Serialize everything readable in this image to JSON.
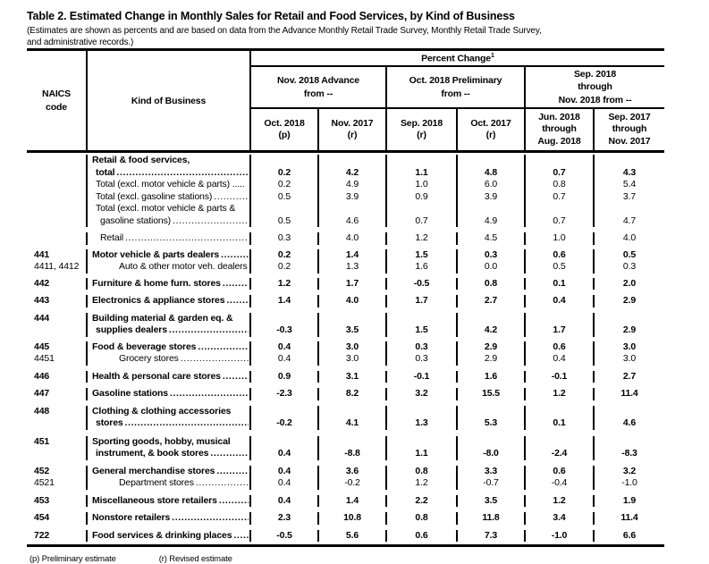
{
  "title": "Table 2.  Estimated Change in Monthly Sales for Retail and Food Services, by Kind of Business",
  "subtitle_line1": "(Estimates are shown as percents and are based on data from the Advance Monthly Retail Trade Survey,  Monthly Retail Trade Survey,",
  "subtitle_line2": " and administrative records.)",
  "header": {
    "naics_line1": "NAICS",
    "naics_line2": "code",
    "kind_of_business": "Kind of Business",
    "percent_change": "Percent Change",
    "percent_change_sup": "1",
    "groups": [
      {
        "lines": [
          "Nov. 2018 Advance",
          "from --"
        ]
      },
      {
        "lines": [
          "Oct. 2018 Preliminary",
          "from --"
        ]
      },
      {
        "lines": [
          "Sep. 2018",
          "through",
          "Nov. 2018 from --"
        ]
      }
    ],
    "columns": [
      {
        "lines": [
          "Oct. 2018",
          "(p)"
        ]
      },
      {
        "lines": [
          "Nov. 2017",
          "(r)"
        ]
      },
      {
        "lines": [
          "Sep. 2018",
          "(r)"
        ]
      },
      {
        "lines": [
          "Oct. 2017",
          "(r)"
        ]
      },
      {
        "lines": [
          "Jun. 2018",
          "through",
          "Aug. 2018"
        ]
      },
      {
        "lines": [
          "Sep. 2017",
          "through",
          "Nov. 2017"
        ]
      }
    ]
  },
  "rows": [
    {
      "naics": "",
      "naics_bold": false,
      "bold": true,
      "gap_above": 2,
      "label_lines": [
        {
          "text": "Retail & food services,",
          "indent": 5,
          "dots": false
        },
        {
          "text": "total",
          "indent": 9,
          "dots": true
        }
      ],
      "values": [
        "0.2",
        "4.2",
        "1.1",
        "4.8",
        "0.7",
        "4.3"
      ]
    },
    {
      "naics": "",
      "naics_bold": false,
      "bold": false,
      "gap_above": 0,
      "label_lines": [
        {
          "text": "Total (excl. motor vehicle & parts) .....",
          "indent": 9,
          "dots": false
        }
      ],
      "values": [
        "0.2",
        "4.9",
        "1.0",
        "6.0",
        "0.8",
        "5.4"
      ]
    },
    {
      "naics": "",
      "naics_bold": false,
      "bold": false,
      "gap_above": 0,
      "label_lines": [
        {
          "text": "Total (excl. gasoline stations)",
          "indent": 9,
          "dots": true
        }
      ],
      "values": [
        "0.5",
        "3.9",
        "0.9",
        "3.9",
        "0.7",
        "3.7"
      ]
    },
    {
      "naics": "",
      "naics_bold": false,
      "bold": false,
      "gap_above": 0,
      "label_lines": [
        {
          "text": "Total (excl. motor vehicle & parts &",
          "indent": 9,
          "dots": false
        },
        {
          "text": "gasoline stations)",
          "indent": 14,
          "dots": true
        }
      ],
      "values": [
        "0.5",
        "4.6",
        "0.7",
        "4.9",
        "0.7",
        "4.7"
      ]
    },
    {
      "naics": "",
      "naics_bold": false,
      "bold": false,
      "gap_above": 6,
      "label_lines": [
        {
          "text": "Retail",
          "indent": 14,
          "dots": true
        }
      ],
      "values": [
        "0.3",
        "4.0",
        "1.2",
        "4.5",
        "1.0",
        "4.0"
      ]
    },
    {
      "naics": "441",
      "naics_bold": true,
      "bold": true,
      "gap_above": 5,
      "label_lines": [
        {
          "text": "Motor vehicle & parts dealers",
          "indent": 5,
          "dots": true
        }
      ],
      "values": [
        "0.2",
        "1.4",
        "1.5",
        "0.3",
        "0.6",
        "0.5"
      ]
    },
    {
      "naics": "4411, 4412",
      "naics_bold": false,
      "bold": false,
      "gap_above": 0,
      "label_lines": [
        {
          "text": "Auto & other motor veh. dealers ...",
          "indent": 35,
          "dots": false
        }
      ],
      "values": [
        "0.2",
        "1.3",
        "1.6",
        "0.0",
        "0.5",
        "0.3"
      ]
    },
    {
      "naics": "442",
      "naics_bold": true,
      "bold": true,
      "gap_above": 5,
      "label_lines": [
        {
          "text": "Furniture & home furn. stores",
          "indent": 5,
          "dots": true
        }
      ],
      "values": [
        "1.2",
        "1.7",
        "-0.5",
        "0.8",
        "0.1",
        "2.0"
      ]
    },
    {
      "naics": "443",
      "naics_bold": true,
      "bold": true,
      "gap_above": 6,
      "label_lines": [
        {
          "text": "Electronics & appliance stores",
          "indent": 5,
          "dots": true
        }
      ],
      "values": [
        "1.4",
        "4.0",
        "1.7",
        "2.7",
        "0.4",
        "2.9"
      ]
    },
    {
      "naics": "444",
      "naics_bold": true,
      "bold": true,
      "gap_above": 6,
      "label_lines": [
        {
          "text": "Building material & garden eq. &",
          "indent": 5,
          "dots": false
        },
        {
          "text": "supplies dealers",
          "indent": 9,
          "dots": true
        }
      ],
      "values": [
        "-0.3",
        "3.5",
        "1.5",
        "4.2",
        "1.7",
        "2.9"
      ]
    },
    {
      "naics": "445",
      "naics_bold": true,
      "bold": true,
      "gap_above": 5,
      "label_lines": [
        {
          "text": "Food & beverage stores",
          "indent": 5,
          "dots": true
        }
      ],
      "values": [
        "0.4",
        "3.0",
        "0.3",
        "2.9",
        "0.6",
        "3.0"
      ]
    },
    {
      "naics": "4451",
      "naics_bold": false,
      "bold": false,
      "gap_above": 0,
      "label_lines": [
        {
          "text": "Grocery stores",
          "indent": 35,
          "dots": true
        }
      ],
      "values": [
        "0.4",
        "3.0",
        "0.3",
        "2.9",
        "0.4",
        "3.0"
      ]
    },
    {
      "naics": "446",
      "naics_bold": true,
      "bold": true,
      "gap_above": 6,
      "label_lines": [
        {
          "text": "Health & personal care stores",
          "indent": 5,
          "dots": true
        }
      ],
      "values": [
        "0.9",
        "3.1",
        "-0.1",
        "1.6",
        "-0.1",
        "2.7"
      ]
    },
    {
      "naics": "447",
      "naics_bold": true,
      "bold": true,
      "gap_above": 6,
      "label_lines": [
        {
          "text": "Gasoline stations",
          "indent": 5,
          "dots": true
        }
      ],
      "values": [
        "-2.3",
        "8.2",
        "3.2",
        "15.5",
        "1.2",
        "11.4"
      ]
    },
    {
      "naics": "448",
      "naics_bold": true,
      "bold": true,
      "gap_above": 6,
      "label_lines": [
        {
          "text": "Clothing & clothing accessories",
          "indent": 5,
          "dots": false
        },
        {
          "text": "stores",
          "indent": 9,
          "dots": true
        }
      ],
      "values": [
        "-0.2",
        "4.1",
        "1.3",
        "5.3",
        "0.1",
        "4.6"
      ]
    },
    {
      "naics": "451",
      "naics_bold": true,
      "bold": true,
      "gap_above": 7,
      "label_lines": [
        {
          "text": "Sporting goods, hobby, musical",
          "indent": 5,
          "dots": false
        },
        {
          "text": "instrument, & book stores",
          "indent": 9,
          "dots": true
        }
      ],
      "values": [
        "0.4",
        "-8.8",
        "1.1",
        "-8.0",
        "-2.4",
        "-8.3"
      ]
    },
    {
      "naics": "452",
      "naics_bold": true,
      "bold": true,
      "gap_above": 6,
      "label_lines": [
        {
          "text": "General merchandise stores",
          "indent": 5,
          "dots": true
        }
      ],
      "values": [
        "0.4",
        "3.6",
        "0.8",
        "3.3",
        "0.6",
        "3.2"
      ]
    },
    {
      "naics": "4521",
      "naics_bold": false,
      "bold": false,
      "gap_above": 0,
      "label_lines": [
        {
          "text": "Department stores",
          "indent": 35,
          "dots": true
        }
      ],
      "values": [
        "0.4",
        "-0.2",
        "1.2",
        "-0.7",
        "-0.4",
        "-1.0"
      ]
    },
    {
      "naics": "453",
      "naics_bold": true,
      "bold": true,
      "gap_above": 6,
      "label_lines": [
        {
          "text": "Miscellaneous store retailers",
          "indent": 5,
          "dots": true
        }
      ],
      "values": [
        "0.4",
        "1.4",
        "2.2",
        "3.5",
        "1.2",
        "1.9"
      ]
    },
    {
      "naics": "454",
      "naics_bold": true,
      "bold": true,
      "gap_above": 6,
      "label_lines": [
        {
          "text": "Nonstore retailers",
          "indent": 5,
          "dots": true
        }
      ],
      "values": [
        "2.3",
        "10.8",
        "0.8",
        "11.8",
        "3.4",
        "11.4"
      ]
    },
    {
      "naics": "722",
      "naics_bold": true,
      "bold": true,
      "gap_above": 6,
      "label_lines": [
        {
          "text": "Food services & drinking places",
          "indent": 5,
          "dots": true
        }
      ],
      "values": [
        "-0.5",
        "5.6",
        "0.6",
        "7.3",
        "-1.0",
        "6.6"
      ]
    }
  ],
  "footnotes": {
    "p": "(p)  Preliminary estimate",
    "r": "(r)  Revised estimate"
  }
}
